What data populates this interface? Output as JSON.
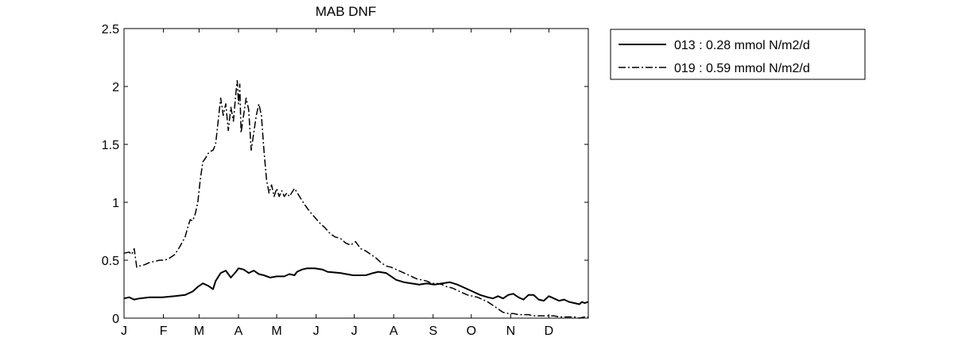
{
  "chart_data": {
    "type": "line",
    "title": "MAB DNF",
    "xlabel": "",
    "ylabel": "",
    "xlim": [
      0,
      365
    ],
    "ylim": [
      0,
      2.5
    ],
    "x_ticks": [
      {
        "label": "J",
        "value": 0
      },
      {
        "label": "F",
        "value": 31
      },
      {
        "label": "M",
        "value": 59
      },
      {
        "label": "A",
        "value": 90
      },
      {
        "label": "M",
        "value": 120
      },
      {
        "label": "J",
        "value": 151
      },
      {
        "label": "J",
        "value": 181
      },
      {
        "label": "A",
        "value": 212
      },
      {
        "label": "S",
        "value": 243
      },
      {
        "label": "O",
        "value": 273
      },
      {
        "label": "N",
        "value": 304
      },
      {
        "label": "D",
        "value": 334
      }
    ],
    "y_ticks": [
      "0",
      "0.5",
      "1",
      "1.5",
      "2",
      "2.5"
    ],
    "y_tick_values": [
      0,
      0.5,
      1,
      1.5,
      2,
      2.5
    ],
    "grid": false,
    "legend_position": "outside-top-right",
    "series": [
      {
        "name": "013 : 0.28 mmol N/m2/d",
        "style": "solid",
        "color": "#000000",
        "x": [
          0,
          4,
          8,
          12,
          20,
          30,
          40,
          48,
          54,
          58,
          62,
          66,
          70,
          72,
          76,
          80,
          84,
          88,
          90,
          94,
          98,
          102,
          106,
          110,
          115,
          120,
          126,
          130,
          134,
          136,
          140,
          144,
          150,
          156,
          160,
          170,
          180,
          190,
          196,
          200,
          206,
          210,
          214,
          220,
          226,
          232,
          238,
          244,
          250,
          256,
          262,
          268,
          274,
          280,
          286,
          290,
          294,
          298,
          302,
          306,
          310,
          314,
          318,
          322,
          326,
          330,
          334,
          338,
          342,
          346,
          350,
          354,
          358,
          360,
          362,
          365
        ],
        "y": [
          0.17,
          0.18,
          0.16,
          0.17,
          0.18,
          0.18,
          0.19,
          0.2,
          0.23,
          0.27,
          0.3,
          0.28,
          0.25,
          0.32,
          0.39,
          0.41,
          0.35,
          0.4,
          0.43,
          0.42,
          0.39,
          0.41,
          0.38,
          0.37,
          0.35,
          0.36,
          0.36,
          0.38,
          0.37,
          0.4,
          0.42,
          0.43,
          0.43,
          0.42,
          0.4,
          0.39,
          0.37,
          0.37,
          0.39,
          0.4,
          0.39,
          0.36,
          0.33,
          0.31,
          0.3,
          0.29,
          0.3,
          0.29,
          0.3,
          0.31,
          0.29,
          0.26,
          0.23,
          0.2,
          0.18,
          0.17,
          0.19,
          0.17,
          0.2,
          0.21,
          0.18,
          0.16,
          0.2,
          0.2,
          0.16,
          0.15,
          0.19,
          0.17,
          0.15,
          0.16,
          0.14,
          0.13,
          0.12,
          0.14,
          0.13,
          0.14
        ]
      },
      {
        "name": "019 : 0.59 mmol N/m2/d",
        "style": "dashdot",
        "color": "#000000",
        "x": [
          0,
          4,
          6,
          8,
          10,
          12,
          16,
          20,
          24,
          28,
          32,
          36,
          40,
          44,
          48,
          50,
          52,
          54,
          56,
          58,
          60,
          62,
          64,
          66,
          68,
          70,
          72,
          74,
          76,
          78,
          80,
          82,
          84,
          86,
          88,
          89,
          90,
          91,
          92,
          94,
          96,
          98,
          100,
          102,
          104,
          106,
          108,
          110,
          112,
          114,
          116,
          118,
          120,
          122,
          124,
          126,
          128,
          130,
          134,
          138,
          142,
          146,
          150,
          154,
          158,
          162,
          166,
          170,
          174,
          178,
          182,
          186,
          190,
          194,
          198,
          202,
          206,
          210,
          214,
          218,
          222,
          226,
          230,
          234,
          238,
          242,
          246,
          250,
          254,
          258,
          262,
          266,
          270,
          274,
          278,
          282,
          286,
          290,
          294,
          298,
          302,
          306,
          310,
          314,
          318,
          322,
          326,
          330,
          334,
          338,
          342,
          346,
          350,
          354,
          358,
          362,
          365
        ],
        "y": [
          0.56,
          0.57,
          0.55,
          0.6,
          0.44,
          0.45,
          0.46,
          0.48,
          0.49,
          0.5,
          0.5,
          0.52,
          0.55,
          0.62,
          0.7,
          0.78,
          0.85,
          0.84,
          0.9,
          1.0,
          1.2,
          1.35,
          1.38,
          1.42,
          1.44,
          1.45,
          1.5,
          1.7,
          1.9,
          1.75,
          1.85,
          1.62,
          1.82,
          1.7,
          1.95,
          2.05,
          1.85,
          2.02,
          1.6,
          1.75,
          1.9,
          1.8,
          1.45,
          1.6,
          1.75,
          1.85,
          1.75,
          1.45,
          1.2,
          1.08,
          1.15,
          1.05,
          1.12,
          1.05,
          1.1,
          1.05,
          1.08,
          1.05,
          1.12,
          1.05,
          0.98,
          0.92,
          0.87,
          0.82,
          0.78,
          0.73,
          0.7,
          0.69,
          0.65,
          0.63,
          0.66,
          0.6,
          0.58,
          0.55,
          0.52,
          0.48,
          0.45,
          0.44,
          0.42,
          0.4,
          0.38,
          0.36,
          0.34,
          0.33,
          0.32,
          0.3,
          0.3,
          0.29,
          0.27,
          0.26,
          0.24,
          0.22,
          0.2,
          0.19,
          0.18,
          0.16,
          0.14,
          0.11,
          0.08,
          0.05,
          0.04,
          0.04,
          0.03,
          0.03,
          0.03,
          0.02,
          0.02,
          0.02,
          0.02,
          0.02,
          0.01,
          0.01,
          0.01,
          0.01,
          0.0,
          0.01,
          0.01
        ]
      }
    ]
  }
}
